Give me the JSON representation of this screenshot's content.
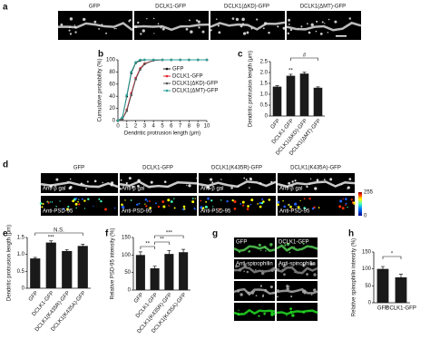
{
  "panel_letters": [
    "a",
    "b",
    "c",
    "d",
    "e",
    "f",
    "g",
    "h"
  ],
  "image_a": {
    "labels": [
      "GFP",
      "DCLK1-GFP",
      "DCLK1(ΔKD)-GFP",
      "DCLK1(ΔMT)-GFP"
    ]
  },
  "image_d": {
    "labels": [
      "GFP",
      "DCLK1-GFP",
      "DCLK1(K435R)-GFP",
      "DCLK1(K435A)-GFP"
    ],
    "row_labels": [
      "Anti-β gal",
      "Anti-PSD-95"
    ],
    "scale": [
      0,
      255
    ]
  },
  "image_g": {
    "labels": [
      "GFP",
      "DCLK1-GFP"
    ],
    "row_label": "Anti-spinophilin"
  },
  "chart_data": [
    {
      "type": "line",
      "xlabel": "Dendritic protrusion length (μm)",
      "ylabel": "Cumulative probability (%)",
      "x": [
        0,
        0.5,
        1,
        1.5,
        2,
        2.5,
        3,
        4,
        5,
        6,
        7,
        8,
        9,
        10
      ],
      "series": [
        {
          "name": "GFP",
          "color": "#111111",
          "values": [
            0,
            5,
            40,
            78,
            95,
            99,
            100,
            100,
            100,
            100,
            100,
            100,
            100,
            100
          ]
        },
        {
          "name": "DCLK1-GFP",
          "color": "#e0202a",
          "values": [
            0,
            2,
            18,
            45,
            70,
            86,
            94,
            99,
            100,
            100,
            100,
            100,
            100,
            100
          ]
        },
        {
          "name": "DCLK1(ΔKD)-GFP",
          "color": "#555555",
          "values": [
            0,
            2,
            16,
            42,
            68,
            84,
            93,
            99,
            100,
            100,
            100,
            100,
            100,
            100
          ]
        },
        {
          "name": "DCLK1(ΔMT)-GFP",
          "color": "#2aa198",
          "values": [
            0,
            5,
            42,
            80,
            96,
            100,
            100,
            100,
            100,
            100,
            100,
            100,
            100,
            100
          ]
        }
      ],
      "xlim": [
        0,
        10
      ],
      "xticks": [
        0,
        1,
        2,
        3,
        4,
        5,
        6,
        7,
        8,
        9,
        10
      ],
      "ylim": [
        0,
        100
      ],
      "yticks": [
        0,
        20,
        40,
        60,
        80,
        100
      ],
      "legend": "right"
    },
    {
      "type": "bar",
      "ylabel": "Dendritic protrusion length (μm)",
      "categories": [
        "GFP",
        "DCLK1-GFP",
        "DCLK1(ΔKD)-GFP",
        "DCLK1(ΔMT)-GFP"
      ],
      "values": [
        1.35,
        1.85,
        1.95,
        1.3
      ],
      "errors": [
        0.04,
        0.07,
        0.06,
        0.04
      ],
      "color": "#1a1a1a",
      "ylim": [
        0,
        2.5
      ],
      "yticks": [
        0,
        0.5,
        {
          "value": 1,
          "label": "1.0"
        },
        1.5,
        {
          "value": 2,
          "label": "2.0"
        },
        2.5
      ],
      "annotations": [
        "#",
        "**"
      ]
    },
    {
      "type": "bar",
      "ylabel": "Dendritic protrusion length (μm)",
      "categories": [
        "GFP",
        "DCLK1-GFP",
        "DCLK1(K435R)-GFP",
        "DCLK1(K435A)-GFP"
      ],
      "values": [
        0.88,
        1.35,
        1.1,
        1.25
      ],
      "errors": [
        0.03,
        0.05,
        0.04,
        0.05
      ],
      "color": "#1a1a1a",
      "ylim": [
        0,
        1.5
      ],
      "yticks": [
        0,
        0.5,
        {
          "value": 1,
          "label": "1.0"
        },
        1.5
      ],
      "annotations": [
        "N.S.",
        "***"
      ]
    },
    {
      "type": "bar",
      "ylabel": "Relative PSD-95 intensity (%)",
      "categories": [
        "GFP",
        "DCLK1-GFP",
        "DCLK1(K435R)-GFP",
        "DCLK1(K435A)-GFP"
      ],
      "values": [
        100,
        62,
        103,
        108
      ],
      "errors": [
        9,
        6,
        10,
        8
      ],
      "color": "#1a1a1a",
      "ylim": [
        0,
        150
      ],
      "yticks": [
        0,
        50,
        100,
        150
      ],
      "annotations": [
        "**",
        "**",
        "***"
      ]
    },
    {
      "type": "bar",
      "ylabel": "Relative spinophilin intensity (%)",
      "categories": [
        "GFP",
        "DCLK1-GFP"
      ],
      "values": [
        100,
        75
      ],
      "errors": [
        7,
        9
      ],
      "color": "#1a1a1a",
      "ylim": [
        0,
        150
      ],
      "yticks": [
        0,
        50,
        100,
        150
      ],
      "annotations": [
        "*"
      ]
    }
  ]
}
